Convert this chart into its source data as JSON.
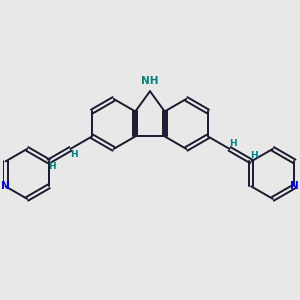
{
  "background_color": "#e8e8e8",
  "bond_color": "#1a1a2e",
  "N_color": "#0000ee",
  "NH_color": "#008080",
  "H_color": "#008080",
  "line_width": 1.4,
  "fig_size": [
    3.0,
    3.0
  ],
  "dpi": 100,
  "xlim": [
    0,
    10
  ],
  "ylim": [
    0,
    10
  ]
}
